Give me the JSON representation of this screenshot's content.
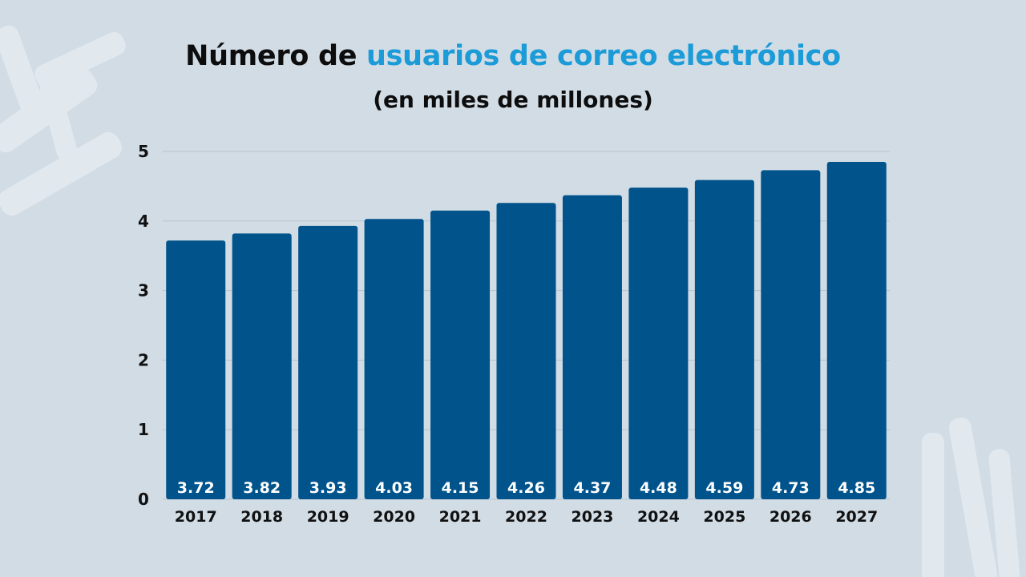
{
  "colors": {
    "background": "#d1dce5",
    "bar": "#00538b",
    "accent": "#1b9bd7",
    "text": "#0d0d0d",
    "grid": "#b7c4cf"
  },
  "chart_data": {
    "type": "bar",
    "title_prefix": "Número de ",
    "title_highlight": "usuarios de correo electrónico",
    "subtitle": "(en miles de millones)",
    "categories": [
      "2017",
      "2018",
      "2019",
      "2020",
      "2021",
      "2022",
      "2023",
      "2024",
      "2025",
      "2026",
      "2027"
    ],
    "values": [
      3.72,
      3.82,
      3.93,
      4.03,
      4.15,
      4.26,
      4.37,
      4.48,
      4.59,
      4.73,
      4.85
    ],
    "value_labels": [
      "3.72",
      "3.82",
      "3.93",
      "4.03",
      "4.15",
      "4.26",
      "4.37",
      "4.48",
      "4.59",
      "4.73",
      "4.85"
    ],
    "yticks": [
      "0",
      "1",
      "2",
      "3",
      "4",
      "5"
    ],
    "ylim": [
      0,
      5
    ],
    "xlabel": "",
    "ylabel": "",
    "grid": true
  }
}
